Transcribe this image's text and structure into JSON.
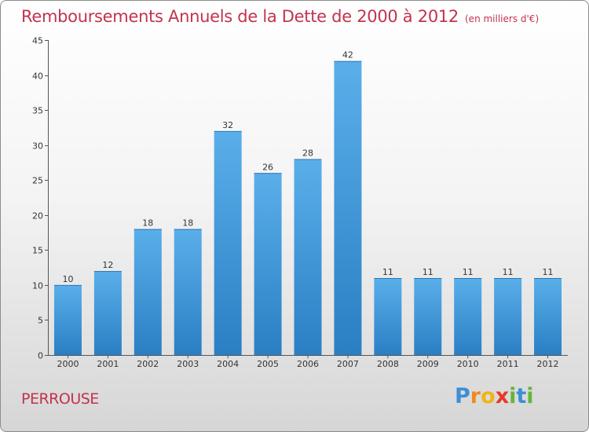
{
  "chart_data": {
    "type": "bar",
    "title": "Remboursements Annuels de la Dette de 2000 à 2012",
    "subtitle": "(en milliers d'€)",
    "categories": [
      "2000",
      "2001",
      "2002",
      "2003",
      "2004",
      "2005",
      "2006",
      "2007",
      "2008",
      "2009",
      "2010",
      "2011",
      "2012"
    ],
    "values": [
      10,
      12,
      18,
      18,
      32,
      26,
      28,
      42,
      11,
      11,
      11,
      11,
      11
    ],
    "ylim": [
      0,
      45
    ],
    "yticks": [
      0,
      5,
      10,
      15,
      20,
      25,
      30,
      35,
      40,
      45
    ],
    "grid": false,
    "bar_color": "#3d92d6",
    "title_color": "#c2334d"
  },
  "commune": "PERROUSE",
  "logo": {
    "text": "Proxiti",
    "letters": [
      "P",
      "r",
      "o",
      "x",
      "i",
      "t",
      "i"
    ],
    "colors": [
      "#3b8fd4",
      "#f08a1e",
      "#f0b414",
      "#e8392a",
      "#64b43c",
      "#3b8fd4",
      "#64b43c"
    ]
  }
}
